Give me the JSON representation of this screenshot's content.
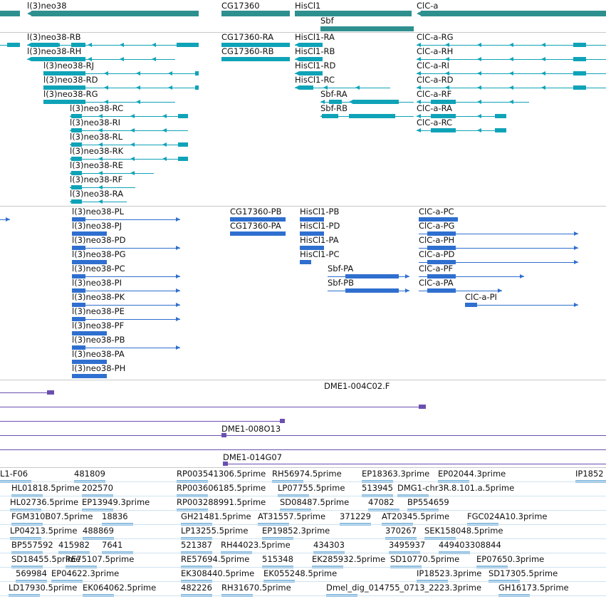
{
  "colors": {
    "gene": "#2e8f8f",
    "transcript_a": "#0fa3b8",
    "transcript_b": "#2f6fcf",
    "clone": "#6b4fb0",
    "est": "#8fbfe0",
    "separator": "#c8c8c8"
  },
  "tracks": {
    "genes": [
      "l(3)neo38",
      "CG17360",
      "HisCl1",
      "ClC-a",
      "Sbf"
    ],
    "transcripts_a": [
      "l(3)neo38-RB",
      "CG17360-RA",
      "HisCl1-RA",
      "ClC-a-RG",
      "l(3)neo38-RH",
      "CG17360-RB",
      "HisCl1-RB",
      "ClC-a-RH",
      "l(3)neo38-RJ",
      "HisCl1-RD",
      "ClC-a-RI",
      "l(3)neo38-RD",
      "HisCl1-RC",
      "ClC-a-RD",
      "l(3)neo38-RG",
      "Sbf-RA",
      "ClC-a-RF",
      "l(3)neo38-RC",
      "Sbf-RB",
      "ClC-a-RA",
      "l(3)neo38-RI",
      "ClC-a-RC",
      "l(3)neo38-RL",
      "l(3)neo38-RK",
      "l(3)neo38-RE",
      "l(3)neo38-RF",
      "l(3)neo38-RA"
    ],
    "transcripts_b": [
      "l(3)neo38-PL",
      "CG17360-PB",
      "HisCl1-PB",
      "ClC-a-PC",
      "l(3)neo38-PJ",
      "CG17360-PA",
      "HisCl1-PD",
      "ClC-a-PG",
      "l(3)neo38-PD",
      "HisCl1-PA",
      "ClC-a-PH",
      "l(3)neo38-PG",
      "HisCl1-PC",
      "ClC-a-PD",
      "l(3)neo38-PC",
      "Sbf-PA",
      "ClC-a-PF",
      "l(3)neo38-PI",
      "Sbf-PB",
      "ClC-a-PA",
      "l(3)neo38-PK",
      "ClC-a-PI",
      "l(3)neo38-PE",
      "l(3)neo38-PF",
      "l(3)neo38-PB",
      "l(3)neo38-PA",
      "l(3)neo38-PH"
    ],
    "clones": [
      "DME1-004C02.F",
      "DME1-008O13",
      "DME1-014G07"
    ],
    "ests": [
      "L1-F06",
      "481809",
      "RP003541306.5prime",
      "RH56974.5prime",
      "EP18363.3prime",
      "EP02044.3prime",
      "IP1852",
      "HL01818.5prime",
      "202570",
      "RP003606185.5prime",
      "LP07755.5prime",
      "513945",
      "DMG1-chr3R.8.101.a.5prime",
      "HL02736.5prime",
      "EP13949.3prime",
      "RP003288991.5prime",
      "SD08487.5prime",
      "47082",
      "BP554659",
      "FGM310B07.5prime",
      "18836",
      "GH21481.5prime",
      "AT31557.5prime",
      "371229",
      "AT20345.5prime",
      "FGC024A10.3prime",
      "LP04213.5prime",
      "488869",
      "LP13255.5prime",
      "EP19852.3prime",
      "370267",
      "SEK158048.5prime",
      "BP557592",
      "415982",
      "7641",
      "521387",
      "RH44023.5prime",
      "434303",
      "3495937",
      "449403308844",
      "SD18455.5prime",
      "RE75107.5prime",
      "RE57694.5prime",
      "515348",
      "EK285932.5prime",
      "SD10770.5prime",
      "EP07650.3prime",
      "569984",
      "EP04622.3prime",
      "EK308440.5prime",
      "EK055248.5prime",
      "IP18523.3prime",
      "SD17305.5prime",
      "LD17930.5prime",
      "EK064062.5prime",
      "482226",
      "RH31670.5prime",
      "Dmel_dig_014755_0713_2223.3prime",
      "GH16173.5prime"
    ]
  }
}
